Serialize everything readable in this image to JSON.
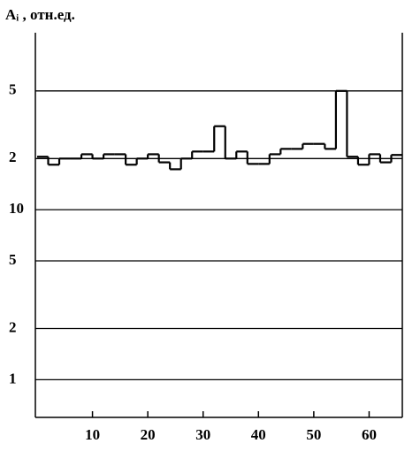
{
  "chart_data": {
    "type": "histogram",
    "title": "Aᵢ , отн.ед.",
    "bins": [
      0,
      2,
      4,
      6,
      8,
      10,
      12,
      14,
      16,
      18,
      20,
      22,
      24,
      26,
      28,
      30,
      32,
      34,
      36,
      38,
      40,
      42,
      44,
      46,
      48,
      50,
      52,
      54,
      56,
      58,
      60,
      62,
      64,
      66
    ],
    "values": [
      20.5,
      18.4,
      20,
      20,
      21.2,
      20,
      21.2,
      21.2,
      18.4,
      20,
      21.2,
      19,
      17.3,
      20,
      22,
      22,
      31,
      20,
      22,
      18.6,
      18.6,
      21.2,
      22.8,
      22.8,
      24.4,
      24.4,
      22.8,
      50,
      20.5,
      18.4,
      21.2,
      19,
      21
    ],
    "color": "#000000",
    "xlim": [
      0,
      66
    ],
    "xticks": [
      10,
      20,
      30,
      40,
      50,
      60
    ],
    "ylim": [
      0.6,
      110
    ],
    "log_y": true,
    "yticks": [
      1,
      2,
      5,
      10,
      {
        "value": 20,
        "label": "2"
      },
      {
        "value": 50,
        "label": "5"
      }
    ],
    "grid": true
  }
}
